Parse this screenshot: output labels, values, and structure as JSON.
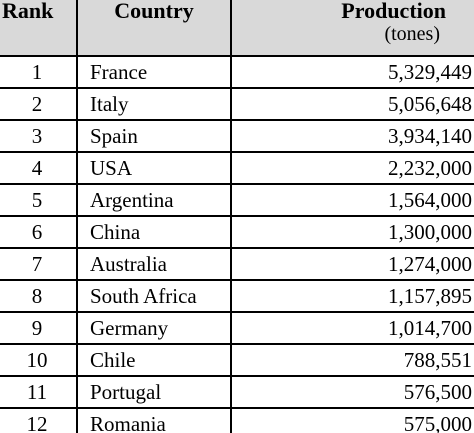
{
  "table": {
    "headers": {
      "rank": "Rank",
      "country": "Country",
      "production": "Production",
      "production_unit": "(tones)"
    },
    "rows": [
      {
        "rank": "1",
        "country": "France",
        "production": "5,329,449"
      },
      {
        "rank": "2",
        "country": "Italy",
        "production": "5,056,648"
      },
      {
        "rank": "3",
        "country": "Spain",
        "production": "3,934,140"
      },
      {
        "rank": "4",
        "country": "USA",
        "production": "2,232,000"
      },
      {
        "rank": "5",
        "country": "Argentina",
        "production": "1,564,000"
      },
      {
        "rank": "6",
        "country": "China",
        "production": "1,300,000"
      },
      {
        "rank": "7",
        "country": "Australia",
        "production": "1,274,000"
      },
      {
        "rank": "8",
        "country": "South Africa",
        "production": "1,157,895"
      },
      {
        "rank": "9",
        "country": "Germany",
        "production": "1,014,700"
      },
      {
        "rank": "10",
        "country": "Chile",
        "production": "788,551"
      },
      {
        "rank": "11",
        "country": "Portugal",
        "production": "576,500"
      },
      {
        "rank": "12",
        "country": "Romania",
        "production": "575,000"
      }
    ]
  }
}
